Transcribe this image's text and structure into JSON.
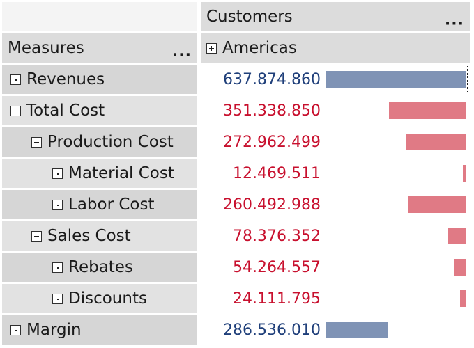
{
  "column_header": {
    "dimension_label": "Customers",
    "dimension_menu": "...",
    "member_label": "Americas",
    "member_state": "collapsed"
  },
  "row_header": {
    "label": "Measures",
    "menu": "..."
  },
  "rows": [
    {
      "label": "Revenues",
      "level": 0,
      "state": "leaf",
      "value": "637.874.860",
      "amount": 637874860,
      "sign": "positive"
    },
    {
      "label": "Total Cost",
      "level": 0,
      "state": "expanded",
      "value": "351.338.850",
      "amount": 351338850,
      "sign": "negative"
    },
    {
      "label": "Production Cost",
      "level": 1,
      "state": "expanded",
      "value": "272.962.499",
      "amount": 272962499,
      "sign": "negative"
    },
    {
      "label": "Material Cost",
      "level": 2,
      "state": "leaf",
      "value": "12.469.511",
      "amount": 12469511,
      "sign": "negative"
    },
    {
      "label": "Labor Cost",
      "level": 2,
      "state": "leaf",
      "value": "260.492.988",
      "amount": 260492988,
      "sign": "negative"
    },
    {
      "label": "Sales Cost",
      "level": 1,
      "state": "expanded",
      "value": "78.376.352",
      "amount": 78376352,
      "sign": "negative"
    },
    {
      "label": "Rebates",
      "level": 2,
      "state": "leaf",
      "value": "54.264.557",
      "amount": 54264557,
      "sign": "negative"
    },
    {
      "label": "Discounts",
      "level": 2,
      "state": "leaf",
      "value": "24.111.795",
      "amount": 24111795,
      "sign": "negative"
    },
    {
      "label": "Margin",
      "level": 0,
      "state": "leaf",
      "value": "286.536.010",
      "amount": 286536010,
      "sign": "positive"
    }
  ],
  "colors": {
    "positive_bar": "#7f93b5",
    "negative_bar": "#e07a85",
    "positive_text": "#1f3f7a",
    "negative_text": "#c8102e"
  }
}
